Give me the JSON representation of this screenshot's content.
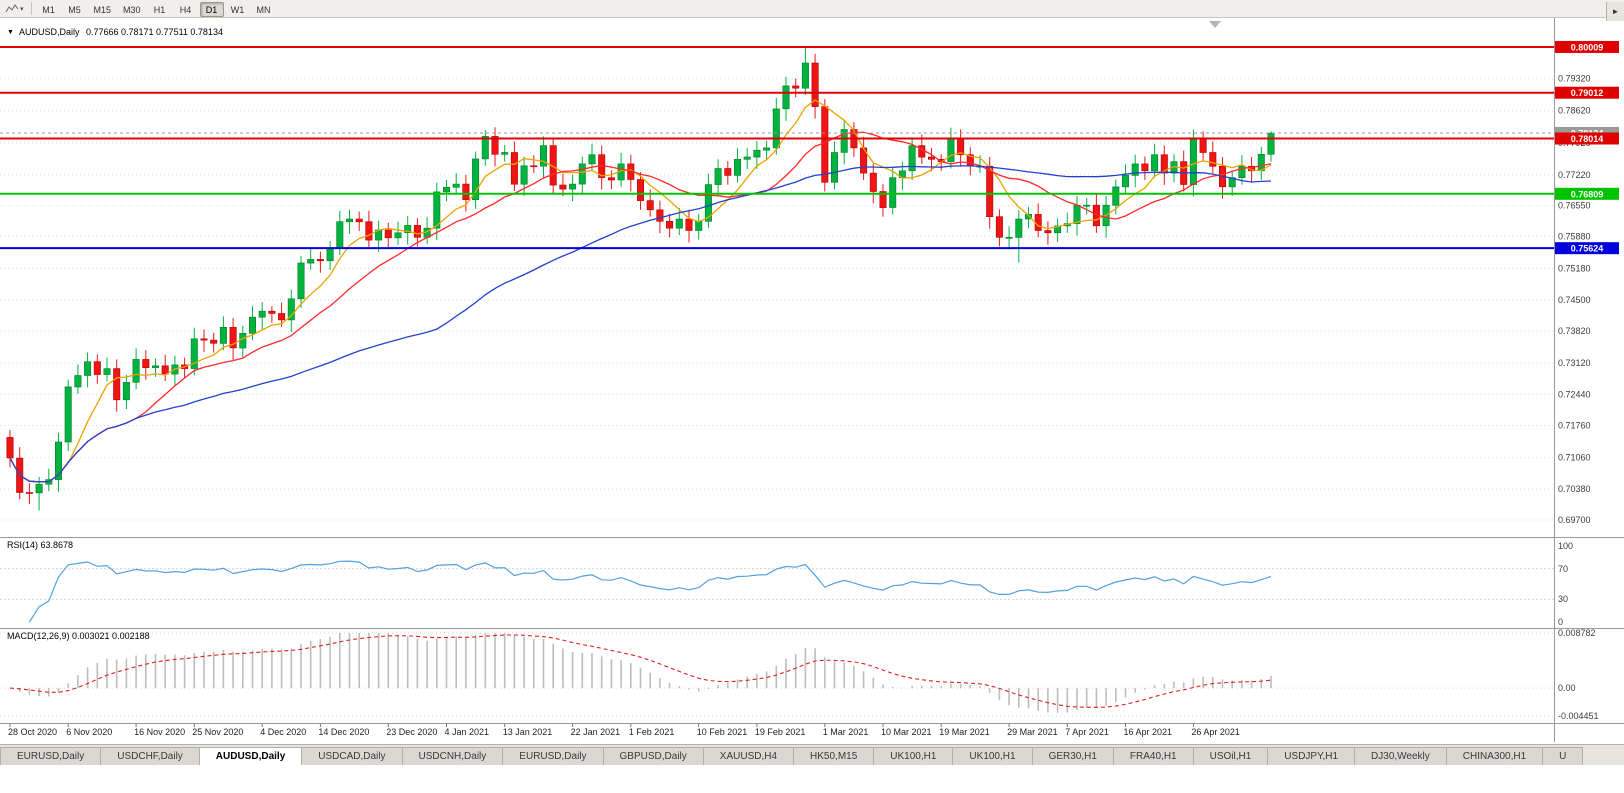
{
  "toolbar": {
    "dropdown_glyph": "▾",
    "timeframes": [
      {
        "label": "M1",
        "active": false
      },
      {
        "label": "M5",
        "active": false
      },
      {
        "label": "M15",
        "active": false
      },
      {
        "label": "M30",
        "active": false
      },
      {
        "label": "H1",
        "active": false
      },
      {
        "label": "H4",
        "active": false
      },
      {
        "label": "D1",
        "active": true
      },
      {
        "label": "W1",
        "active": false
      },
      {
        "label": "MN",
        "active": false
      }
    ]
  },
  "chart": {
    "symbol_period": "AUDUSD,Daily",
    "ohlc_text": "0.77666 0.78171 0.77511 0.78134",
    "dropdown_caret": "▼"
  },
  "price_scale": {
    "labels": [
      "0.79320",
      "0.78620",
      "0.77920",
      "0.77220",
      "0.76550",
      "0.75880",
      "0.75180",
      "0.74500",
      "0.73820",
      "0.73120",
      "0.72440",
      "0.71760",
      "0.71060",
      "0.70380",
      "0.69700"
    ]
  },
  "hlines": [
    {
      "price": 0.80009,
      "label": "0.80009",
      "color": "#e00000",
      "type": "resistance"
    },
    {
      "price": 0.79012,
      "label": "0.79012",
      "color": "#e00000",
      "type": "resistance"
    },
    {
      "price": 0.78014,
      "label": "0.78014",
      "color": "#e00000",
      "type": "resistance"
    },
    {
      "price": 0.76809,
      "label": "0.76809",
      "color": "#00c300",
      "type": "support"
    },
    {
      "price": 0.75624,
      "label": "0.75624",
      "color": "#0000dd",
      "type": "support"
    }
  ],
  "bid_line": {
    "price": 0.78134,
    "label": "0.78134",
    "color": "#9a9a9a"
  },
  "x_ticks": {
    "labels": [
      "28 Oct 2020",
      "6 Nov 2020",
      "16 Nov 2020",
      "25 Nov 2020",
      "4 Dec 2020",
      "14 Dec 2020",
      "23 Dec 2020",
      "4 Jan 2021",
      "13 Jan 2021",
      "22 Jan 2021",
      "1 Feb 2021",
      "10 Feb 2021",
      "19 Feb 2021",
      "1 Mar 2021",
      "10 Mar 2021",
      "19 Mar 2021",
      "29 Mar 2021",
      "7 Apr 2021",
      "16 Apr 2021",
      "26 Apr 2021"
    ],
    "indices": [
      0,
      6,
      13,
      19,
      26,
      32,
      39,
      45,
      51,
      58,
      64,
      71,
      77,
      84,
      90,
      96,
      103,
      109,
      115,
      122
    ]
  },
  "chart_data": {
    "type": "candlestick",
    "symbol": "AUDUSD",
    "timeframe": "Daily",
    "current_bar": {
      "open": 0.77666,
      "high": 0.78171,
      "low": 0.77511,
      "close": 0.78134
    },
    "price_range_top": 0.8064,
    "price_range_bottom": 0.6933,
    "up_color": "#00b33f",
    "down_color": "#ef1515",
    "candles": [
      [
        0.715,
        0.7166,
        0.7085,
        0.7105
      ],
      [
        0.7105,
        0.7129,
        0.7015,
        0.703
      ],
      [
        0.703,
        0.705,
        0.7005,
        0.7029
      ],
      [
        0.7029,
        0.7064,
        0.6991,
        0.7048
      ],
      [
        0.7048,
        0.7082,
        0.7033,
        0.7058
      ],
      [
        0.7058,
        0.716,
        0.7032,
        0.714
      ],
      [
        0.714,
        0.7276,
        0.712,
        0.726
      ],
      [
        0.726,
        0.7309,
        0.7245,
        0.7285
      ],
      [
        0.7285,
        0.7335,
        0.7259,
        0.7315
      ],
      [
        0.7315,
        0.7331,
        0.7267,
        0.7287
      ],
      [
        0.7287,
        0.7324,
        0.7272,
        0.73
      ],
      [
        0.73,
        0.732,
        0.7206,
        0.7232
      ],
      [
        0.7232,
        0.7286,
        0.7212,
        0.727
      ],
      [
        0.727,
        0.7344,
        0.7255,
        0.732
      ],
      [
        0.732,
        0.734,
        0.7276,
        0.7302
      ],
      [
        0.7302,
        0.7322,
        0.7282,
        0.7306
      ],
      [
        0.7306,
        0.733,
        0.7273,
        0.7288
      ],
      [
        0.7288,
        0.7328,
        0.7262,
        0.7308
      ],
      [
        0.7308,
        0.7324,
        0.728,
        0.73
      ],
      [
        0.73,
        0.7389,
        0.7285,
        0.7365
      ],
      [
        0.7365,
        0.7385,
        0.7336,
        0.7362
      ],
      [
        0.7362,
        0.7378,
        0.7335,
        0.7355
      ],
      [
        0.7355,
        0.7414,
        0.734,
        0.739
      ],
      [
        0.739,
        0.741,
        0.7319,
        0.7345
      ],
      [
        0.7345,
        0.7393,
        0.7325,
        0.7377
      ],
      [
        0.7377,
        0.7436,
        0.7362,
        0.7412
      ],
      [
        0.7412,
        0.7445,
        0.7386,
        0.7425
      ],
      [
        0.7425,
        0.7436,
        0.74,
        0.742
      ],
      [
        0.742,
        0.7444,
        0.7391,
        0.7406
      ],
      [
        0.7406,
        0.7472,
        0.738,
        0.7452
      ],
      [
        0.7452,
        0.7546,
        0.7432,
        0.753
      ],
      [
        0.753,
        0.7562,
        0.7515,
        0.7538
      ],
      [
        0.7538,
        0.7555,
        0.7509,
        0.7535
      ],
      [
        0.7535,
        0.7578,
        0.7515,
        0.7562
      ],
      [
        0.7562,
        0.7644,
        0.7547,
        0.762
      ],
      [
        0.762,
        0.7646,
        0.7594,
        0.7626
      ],
      [
        0.7626,
        0.7642,
        0.76,
        0.762
      ],
      [
        0.762,
        0.7644,
        0.7565,
        0.758
      ],
      [
        0.758,
        0.7622,
        0.7554,
        0.7602
      ],
      [
        0.7602,
        0.7618,
        0.7565,
        0.7585
      ],
      [
        0.7585,
        0.762,
        0.757,
        0.7596
      ],
      [
        0.7596,
        0.7632,
        0.757,
        0.7612
      ],
      [
        0.7612,
        0.7628,
        0.7566,
        0.7586
      ],
      [
        0.7586,
        0.763,
        0.7571,
        0.7606
      ],
      [
        0.7606,
        0.7705,
        0.758,
        0.7685
      ],
      [
        0.7685,
        0.7711,
        0.7665,
        0.7695
      ],
      [
        0.7695,
        0.7726,
        0.768,
        0.7702
      ],
      [
        0.7702,
        0.7722,
        0.7642,
        0.7668
      ],
      [
        0.7668,
        0.7773,
        0.7648,
        0.7757
      ],
      [
        0.7757,
        0.782,
        0.7742,
        0.7806
      ],
      [
        0.7806,
        0.7826,
        0.7741,
        0.7767
      ],
      [
        0.7767,
        0.7787,
        0.7751,
        0.7771
      ],
      [
        0.7771,
        0.7795,
        0.7687,
        0.7702
      ],
      [
        0.7702,
        0.7762,
        0.7676,
        0.7742
      ],
      [
        0.7742,
        0.7765,
        0.7726,
        0.7741
      ],
      [
        0.7741,
        0.7806,
        0.7715,
        0.7786
      ],
      [
        0.7786,
        0.7802,
        0.768,
        0.77
      ],
      [
        0.77,
        0.7724,
        0.7676,
        0.7691
      ],
      [
        0.7691,
        0.7722,
        0.7665,
        0.7702
      ],
      [
        0.7702,
        0.7762,
        0.7682,
        0.7746
      ],
      [
        0.7746,
        0.779,
        0.7731,
        0.7766
      ],
      [
        0.7766,
        0.7786,
        0.769,
        0.7716
      ],
      [
        0.7716,
        0.7732,
        0.7691,
        0.7711
      ],
      [
        0.7711,
        0.777,
        0.7696,
        0.7746
      ],
      [
        0.7746,
        0.7766,
        0.7686,
        0.7712
      ],
      [
        0.7712,
        0.7728,
        0.7646,
        0.7666
      ],
      [
        0.7666,
        0.769,
        0.7631,
        0.7646
      ],
      [
        0.7646,
        0.7666,
        0.7595,
        0.7621
      ],
      [
        0.7621,
        0.7637,
        0.7586,
        0.7606
      ],
      [
        0.7606,
        0.765,
        0.7591,
        0.7626
      ],
      [
        0.7626,
        0.7646,
        0.7575,
        0.7601
      ],
      [
        0.7601,
        0.7637,
        0.7581,
        0.7621
      ],
      [
        0.7621,
        0.7725,
        0.7606,
        0.7701
      ],
      [
        0.7701,
        0.7756,
        0.7675,
        0.7736
      ],
      [
        0.7736,
        0.7752,
        0.7701,
        0.7721
      ],
      [
        0.7721,
        0.778,
        0.7706,
        0.7756
      ],
      [
        0.7756,
        0.7781,
        0.7735,
        0.7761
      ],
      [
        0.7761,
        0.7796,
        0.7735,
        0.7776
      ],
      [
        0.7776,
        0.7797,
        0.7756,
        0.7781
      ],
      [
        0.7781,
        0.789,
        0.7766,
        0.7866
      ],
      [
        0.7866,
        0.7936,
        0.784,
        0.7916
      ],
      [
        0.7916,
        0.7932,
        0.7891,
        0.7911
      ],
      [
        0.7911,
        0.8001,
        0.7896,
        0.7966
      ],
      [
        0.7966,
        0.7986,
        0.7845,
        0.7871
      ],
      [
        0.7871,
        0.7887,
        0.7686,
        0.7706
      ],
      [
        0.7706,
        0.7795,
        0.7691,
        0.7771
      ],
      [
        0.7771,
        0.7841,
        0.7745,
        0.7821
      ],
      [
        0.7821,
        0.7837,
        0.7761,
        0.7781
      ],
      [
        0.7781,
        0.7805,
        0.7711,
        0.7726
      ],
      [
        0.7726,
        0.7746,
        0.766,
        0.7686
      ],
      [
        0.7686,
        0.7702,
        0.7631,
        0.7651
      ],
      [
        0.7651,
        0.774,
        0.7636,
        0.7716
      ],
      [
        0.7716,
        0.7751,
        0.769,
        0.7731
      ],
      [
        0.7731,
        0.7802,
        0.7711,
        0.7786
      ],
      [
        0.7786,
        0.781,
        0.7746,
        0.7761
      ],
      [
        0.7761,
        0.7781,
        0.773,
        0.7756
      ],
      [
        0.7756,
        0.7767,
        0.7731,
        0.7751
      ],
      [
        0.7751,
        0.7825,
        0.7736,
        0.7801
      ],
      [
        0.7801,
        0.7821,
        0.774,
        0.7766
      ],
      [
        0.7766,
        0.7782,
        0.7721,
        0.7741
      ],
      [
        0.7741,
        0.7765,
        0.7726,
        0.7741
      ],
      [
        0.7741,
        0.7761,
        0.7605,
        0.7631
      ],
      [
        0.7631,
        0.7647,
        0.7566,
        0.7586
      ],
      [
        0.7586,
        0.761,
        0.756,
        0.7586
      ],
      [
        0.7586,
        0.7646,
        0.7531,
        0.7626
      ],
      [
        0.7626,
        0.7652,
        0.7606,
        0.7636
      ],
      [
        0.7636,
        0.766,
        0.7586,
        0.7601
      ],
      [
        0.7601,
        0.7621,
        0.757,
        0.7596
      ],
      [
        0.7596,
        0.7627,
        0.7576,
        0.7611
      ],
      [
        0.7611,
        0.764,
        0.7596,
        0.7616
      ],
      [
        0.7616,
        0.7676,
        0.759,
        0.7656
      ],
      [
        0.7656,
        0.7672,
        0.7636,
        0.7656
      ],
      [
        0.7656,
        0.768,
        0.7596,
        0.7611
      ],
      [
        0.7611,
        0.7676,
        0.7585,
        0.7656
      ],
      [
        0.7656,
        0.7712,
        0.7636,
        0.7696
      ],
      [
        0.7696,
        0.7745,
        0.7681,
        0.7721
      ],
      [
        0.7721,
        0.7766,
        0.7695,
        0.7746
      ],
      [
        0.7746,
        0.7762,
        0.7711,
        0.7731
      ],
      [
        0.7731,
        0.779,
        0.7716,
        0.7766
      ],
      [
        0.7766,
        0.7786,
        0.77,
        0.7726
      ],
      [
        0.7726,
        0.7767,
        0.7706,
        0.7751
      ],
      [
        0.7751,
        0.7775,
        0.7686,
        0.7701
      ],
      [
        0.7701,
        0.7821,
        0.7675,
        0.7801
      ],
      [
        0.7801,
        0.7817,
        0.7751,
        0.7771
      ],
      [
        0.7771,
        0.7795,
        0.7726,
        0.7741
      ],
      [
        0.7741,
        0.7761,
        0.767,
        0.7696
      ],
      [
        0.7696,
        0.7732,
        0.7676,
        0.7716
      ],
      [
        0.7716,
        0.7765,
        0.7701,
        0.7741
      ],
      [
        0.7741,
        0.7761,
        0.7705,
        0.7731
      ],
      [
        0.7731,
        0.7783,
        0.7711,
        0.7767
      ],
      [
        0.7767,
        0.7817,
        0.7751,
        0.7813
      ]
    ],
    "moving_averages": [
      {
        "name": "fast-ma",
        "period": 6,
        "color": "#eda303"
      },
      {
        "name": "mid-ma",
        "period": 14,
        "color": "#ff2a2a"
      },
      {
        "name": "slow-ma",
        "period": 45,
        "color": "#2342cc"
      }
    ],
    "rsi": {
      "label": "RSI(14) 63.8678",
      "period": 14,
      "value": 63.8678,
      "color": "#55a1dd",
      "scale": [
        {
          "label": "100",
          "value": 100
        },
        {
          "label": "70",
          "value": 70
        },
        {
          "label": "30",
          "value": 30
        },
        {
          "label": "0",
          "value": 0
        }
      ]
    },
    "macd": {
      "label": "MACD(12,26,9) 0.003021 0.002188",
      "fast": 12,
      "slow": 26,
      "signal_period": 9,
      "value": 0.003021,
      "signal_value": 0.002188,
      "histogram_color": "#bdbdbd",
      "signal_color": "#e02020",
      "scale": [
        {
          "label": "0.008782",
          "value": 0.008782
        },
        {
          "label": "0.00",
          "value": 0
        },
        {
          "label": "-0.004451",
          "value": -0.004451
        }
      ]
    }
  },
  "tabs": {
    "scroll_right_glyph": "►",
    "items": [
      {
        "label": "EURUSD,Daily",
        "active": false
      },
      {
        "label": "USDCHF,Daily",
        "active": false
      },
      {
        "label": "AUDUSD,Daily",
        "active": true
      },
      {
        "label": "USDCAD,Daily",
        "active": false
      },
      {
        "label": "USDCNH,Daily",
        "active": false
      },
      {
        "label": "EURUSD,Daily",
        "active": false
      },
      {
        "label": "GBPUSD,Daily",
        "active": false
      },
      {
        "label": "XAUUSD,H4",
        "active": false
      },
      {
        "label": "HK50,M15",
        "active": false
      },
      {
        "label": "UK100,H1",
        "active": false
      },
      {
        "label": "UK100,H1",
        "active": false
      },
      {
        "label": "GER30,H1",
        "active": false
      },
      {
        "label": "FRA40,H1",
        "active": false
      },
      {
        "label": "USOil,H1",
        "active": false
      },
      {
        "label": "USDJPY,H1",
        "active": false
      },
      {
        "label": "DJ30,Weekly",
        "active": false
      },
      {
        "label": "CHINA300,H1",
        "active": false
      },
      {
        "label": "U",
        "active": false
      }
    ]
  }
}
